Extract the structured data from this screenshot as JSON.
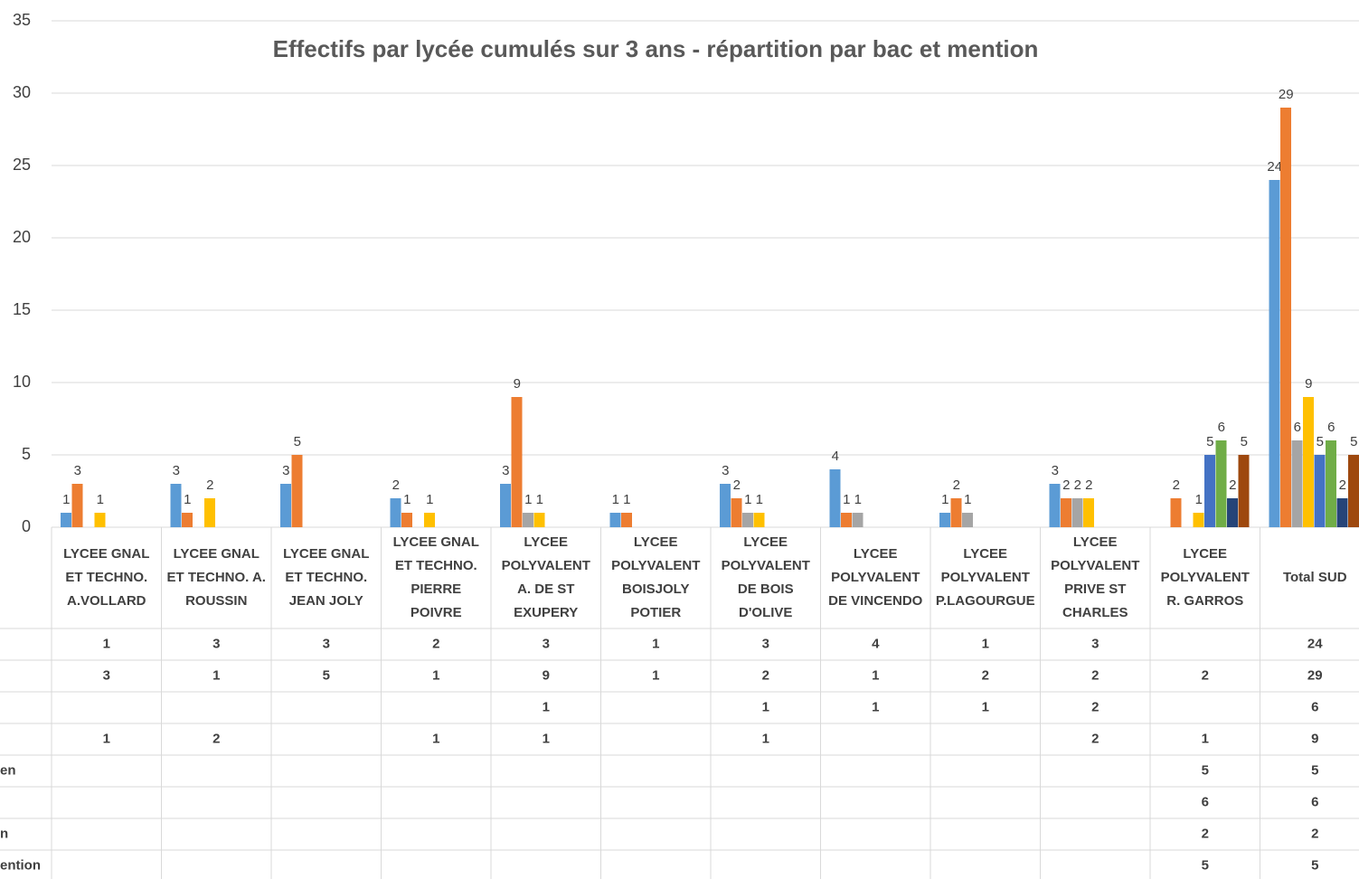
{
  "chart_data": {
    "type": "bar",
    "title": "Effectifs par lycée cumulés sur 3 ans - répartition par bac et mention",
    "categories": [
      "LYCEE GNAL ET TECHNO. A.VOLLARD",
      "LYCEE GNAL ET TECHNO. A. ROUSSIN",
      "LYCEE GNAL ET TECHNO. JEAN JOLY",
      "LYCEE GNAL ET TECHNO. PIERRE POIVRE",
      "LYCEE POLYVALENT A. DE ST EXUPERY",
      "LYCEE POLYVALENT BOISJOLY POTIER",
      "LYCEE POLYVALENT DE BOIS D'OLIVE",
      "LYCEE POLYVALENT DE VINCENDO",
      "LYCEE POLYVALENT P.LAGOURGUE",
      "LYCEE POLYVALENT PRIVE ST CHARLES",
      "LYCEE POLYVALENT R. GARROS",
      "Total  SUD"
    ],
    "series": [
      {
        "color": "#5b9bd5",
        "values": [
          1,
          3,
          3,
          2,
          3,
          1,
          3,
          4,
          1,
          3,
          null,
          24
        ]
      },
      {
        "color": "#ed7d31",
        "values": [
          3,
          1,
          5,
          1,
          9,
          1,
          2,
          1,
          2,
          2,
          2,
          29
        ]
      },
      {
        "color": "#a5a5a5",
        "values": [
          null,
          null,
          null,
          null,
          1,
          null,
          1,
          1,
          1,
          2,
          null,
          6
        ]
      },
      {
        "color": "#ffc000",
        "values": [
          1,
          2,
          null,
          1,
          1,
          null,
          1,
          null,
          null,
          2,
          1,
          9
        ]
      },
      {
        "name": "en",
        "color": "#4472c4",
        "values": [
          null,
          null,
          null,
          null,
          null,
          null,
          null,
          null,
          null,
          null,
          5,
          5
        ]
      },
      {
        "color": "#70ad47",
        "values": [
          null,
          null,
          null,
          null,
          null,
          null,
          null,
          null,
          null,
          null,
          6,
          6
        ]
      },
      {
        "name": "n",
        "color": "#264478",
        "values": [
          null,
          null,
          null,
          null,
          null,
          null,
          null,
          null,
          null,
          null,
          2,
          2
        ]
      },
      {
        "name": "ention",
        "color": "#9e480e",
        "values": [
          null,
          null,
          null,
          null,
          null,
          null,
          null,
          null,
          null,
          null,
          5,
          5
        ]
      }
    ],
    "ylim": [
      0,
      35
    ],
    "yticks": [
      0,
      5,
      10,
      15,
      20,
      25,
      30,
      35
    ],
    "grid": true
  }
}
